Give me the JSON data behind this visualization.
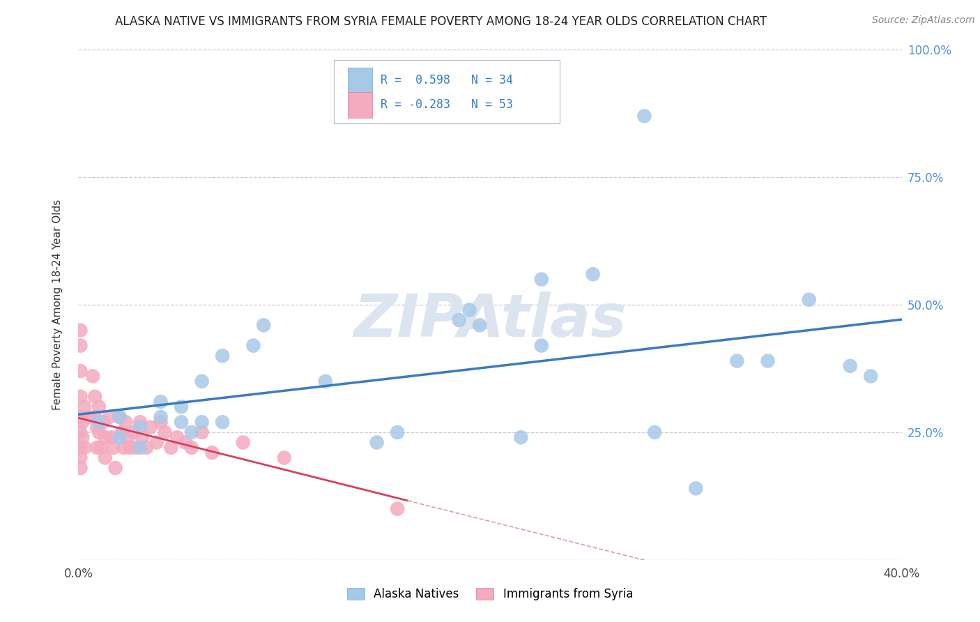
{
  "title": "ALASKA NATIVE VS IMMIGRANTS FROM SYRIA FEMALE POVERTY AMONG 18-24 YEAR OLDS CORRELATION CHART",
  "source": "Source: ZipAtlas.com",
  "ylabel": "Female Poverty Among 18-24 Year Olds",
  "xlim": [
    0.0,
    0.4
  ],
  "ylim": [
    0.0,
    1.0
  ],
  "xticks": [
    0.0,
    0.05,
    0.1,
    0.15,
    0.2,
    0.25,
    0.3,
    0.35,
    0.4
  ],
  "yticks": [
    0.0,
    0.25,
    0.5,
    0.75,
    1.0
  ],
  "alaska_color": "#a8c8e8",
  "alaska_edge_color": "#6aaed6",
  "syria_color": "#f4aabf",
  "syria_edge_color": "#e07898",
  "alaska_line_color": "#3a7cc0",
  "syria_line_color": "#d44060",
  "syria_dash_color": "#d4a0b0",
  "legend_label_alaska": "Alaska Natives",
  "legend_label_syria": "Immigrants from Syria",
  "background_color": "#ffffff",
  "grid_color": "#c8c8d8",
  "watermark": "ZIPAtlas",
  "watermark_color": "#dce4f0",
  "right_tick_color": "#5090d0",
  "alaska_x": [
    0.01,
    0.02,
    0.02,
    0.03,
    0.03,
    0.04,
    0.04,
    0.05,
    0.05,
    0.055,
    0.06,
    0.06,
    0.07,
    0.07,
    0.085,
    0.09,
    0.12,
    0.145,
    0.155,
    0.185,
    0.19,
    0.195,
    0.215,
    0.225,
    0.225,
    0.25,
    0.275,
    0.28,
    0.3,
    0.32,
    0.335,
    0.355,
    0.375,
    0.385
  ],
  "alaska_y": [
    0.27,
    0.24,
    0.28,
    0.22,
    0.26,
    0.28,
    0.31,
    0.27,
    0.3,
    0.25,
    0.27,
    0.35,
    0.27,
    0.4,
    0.42,
    0.46,
    0.35,
    0.23,
    0.25,
    0.47,
    0.49,
    0.46,
    0.24,
    0.42,
    0.55,
    0.56,
    0.87,
    0.25,
    0.14,
    0.39,
    0.39,
    0.51,
    0.38,
    0.36
  ],
  "syria_x": [
    0.001,
    0.001,
    0.001,
    0.001,
    0.001,
    0.001,
    0.001,
    0.001,
    0.001,
    0.002,
    0.002,
    0.003,
    0.003,
    0.005,
    0.007,
    0.008,
    0.008,
    0.009,
    0.009,
    0.01,
    0.01,
    0.011,
    0.012,
    0.013,
    0.013,
    0.015,
    0.016,
    0.017,
    0.018,
    0.02,
    0.021,
    0.022,
    0.023,
    0.024,
    0.025,
    0.027,
    0.028,
    0.03,
    0.031,
    0.033,
    0.035,
    0.038,
    0.04,
    0.042,
    0.045,
    0.048,
    0.052,
    0.055,
    0.06,
    0.065,
    0.08,
    0.1,
    0.155
  ],
  "syria_y": [
    0.22,
    0.25,
    0.28,
    0.32,
    0.37,
    0.42,
    0.45,
    0.2,
    0.18,
    0.27,
    0.24,
    0.3,
    0.22,
    0.28,
    0.36,
    0.32,
    0.28,
    0.26,
    0.22,
    0.3,
    0.25,
    0.22,
    0.27,
    0.24,
    0.2,
    0.28,
    0.24,
    0.22,
    0.18,
    0.28,
    0.25,
    0.22,
    0.27,
    0.24,
    0.22,
    0.25,
    0.22,
    0.27,
    0.24,
    0.22,
    0.26,
    0.23,
    0.27,
    0.25,
    0.22,
    0.24,
    0.23,
    0.22,
    0.25,
    0.21,
    0.23,
    0.2,
    0.1
  ]
}
